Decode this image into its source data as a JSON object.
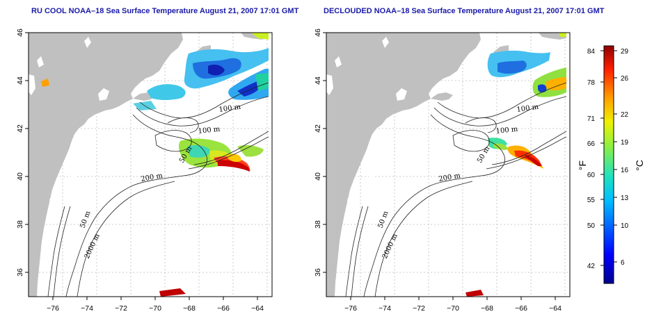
{
  "panels": [
    {
      "id": "left",
      "title": "RU COOL NOAA–18 Sea Surface Temperature August 21, 2007 17:01 GMT",
      "contour_labels": [
        "100 m",
        "100 m",
        "50 m",
        "200 m",
        "50 m",
        "2000 m"
      ]
    },
    {
      "id": "right",
      "title": "DECLOUDED NOAA–18 Sea Surface Temperature August 21, 2007 17:01 GMT",
      "contour_labels": [
        "100 m",
        "100 m",
        "50 m",
        "200 m",
        "50 m",
        "2000 m"
      ]
    }
  ],
  "axes": {
    "lon_ticks": [
      "−76",
      "−74",
      "−72",
      "−70",
      "−68",
      "−66",
      "−64"
    ],
    "lat_ticks": [
      "46",
      "44",
      "42",
      "40",
      "38",
      "36"
    ]
  },
  "colorbar": {
    "fahrenheit_label": "°F",
    "celsius_label": "°C",
    "fahrenheit_ticks": [
      "84",
      "78",
      "71",
      "66",
      "60",
      "55",
      "50",
      "42"
    ],
    "celsius_ticks": [
      "29",
      "26",
      "22",
      "19",
      "16",
      "13",
      "10",
      "6"
    ]
  },
  "colors": {
    "land": "#c0c0c0",
    "title": "#1a1aa8",
    "grid": "#bdbdbd"
  }
}
